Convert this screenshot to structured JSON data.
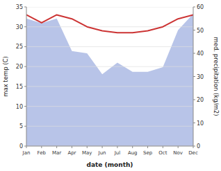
{
  "chart_data": {
    "type": "line",
    "categories": [
      "Jan",
      "Feb",
      "Mar",
      "Apr",
      "May",
      "Jun",
      "Jul",
      "Aug",
      "Sep",
      "Oct",
      "Nov",
      "Dec"
    ],
    "series": [
      {
        "type": "area",
        "axis": "y2",
        "color": "#b8c4e8",
        "values": [
          55,
          53,
          55,
          41,
          40,
          31,
          36,
          32,
          32,
          34,
          50,
          57
        ]
      },
      {
        "type": "line",
        "color": "#cc3333",
        "values": [
          33,
          31,
          33,
          32,
          30,
          29,
          28.5,
          28.5,
          29,
          30,
          32,
          33
        ]
      }
    ],
    "xlabel": "date (month)",
    "ylabel": "max temp (C)",
    "y2label": "med. precipitation (kg/m2)",
    "ylim": [
      0,
      35
    ],
    "yticks": [
      0,
      5,
      10,
      15,
      20,
      25,
      30,
      35
    ],
    "y2lim": [
      0,
      60
    ],
    "y2ticks": [
      0,
      10,
      20,
      30,
      40,
      50,
      60
    ],
    "grid": true
  }
}
